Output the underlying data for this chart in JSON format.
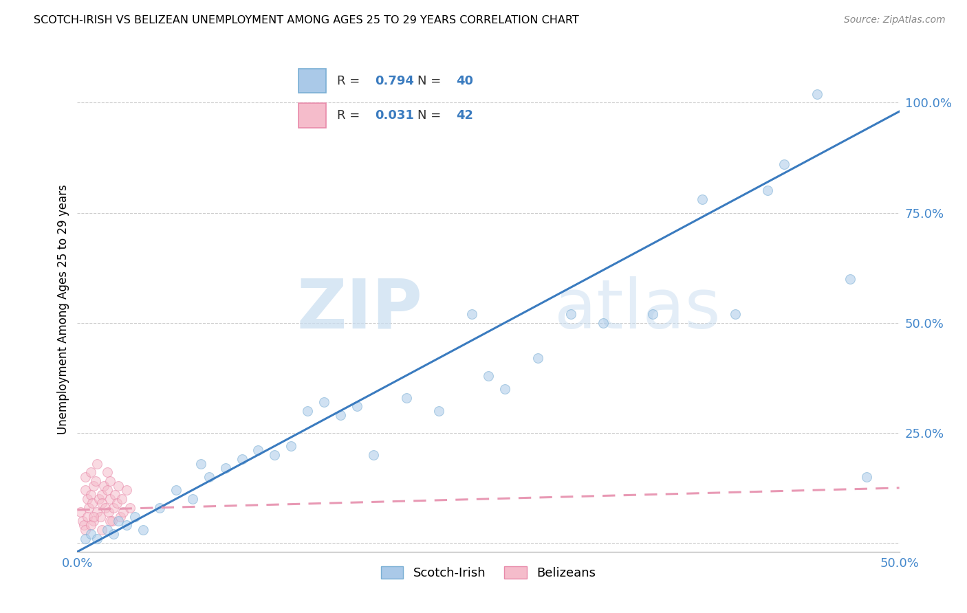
{
  "title": "SCOTCH-IRISH VS BELIZEAN UNEMPLOYMENT AMONG AGES 25 TO 29 YEARS CORRELATION CHART",
  "source": "Source: ZipAtlas.com",
  "ylabel_label": "Unemployment Among Ages 25 to 29 years",
  "xlim": [
    0.0,
    0.5
  ],
  "ylim": [
    -0.02,
    1.08
  ],
  "grid_color": "#cccccc",
  "background_color": "#ffffff",
  "scotch_irish_color": "#aac9e8",
  "scotch_irish_edge_color": "#7aafd4",
  "belizean_color": "#f5bccb",
  "belizean_edge_color": "#e88aaa",
  "scotch_irish_line_color": "#3a7bbf",
  "belizean_line_color": "#e899b4",
  "scotch_irish_R": "0.794",
  "scotch_irish_N": "40",
  "belizean_R": "0.031",
  "belizean_N": "42",
  "legend_label_scotch": "Scotch-Irish",
  "legend_label_belizean": "Belizeans",
  "watermark_zip": "ZIP",
  "watermark_atlas": "atlas",
  "scotch_irish_x": [
    0.005,
    0.008,
    0.012,
    0.018,
    0.022,
    0.025,
    0.03,
    0.035,
    0.04,
    0.05,
    0.06,
    0.07,
    0.075,
    0.08,
    0.09,
    0.1,
    0.11,
    0.12,
    0.13,
    0.14,
    0.15,
    0.16,
    0.17,
    0.18,
    0.2,
    0.22,
    0.24,
    0.25,
    0.26,
    0.28,
    0.3,
    0.32,
    0.35,
    0.38,
    0.4,
    0.42,
    0.43,
    0.45,
    0.47,
    0.48
  ],
  "scotch_irish_y": [
    0.01,
    0.02,
    0.01,
    0.03,
    0.02,
    0.05,
    0.04,
    0.06,
    0.03,
    0.08,
    0.12,
    0.1,
    0.18,
    0.15,
    0.17,
    0.19,
    0.21,
    0.2,
    0.22,
    0.3,
    0.32,
    0.29,
    0.31,
    0.2,
    0.33,
    0.3,
    0.52,
    0.38,
    0.35,
    0.42,
    0.52,
    0.5,
    0.52,
    0.78,
    0.52,
    0.8,
    0.86,
    1.02,
    0.6,
    0.15
  ],
  "belizean_x": [
    0.002,
    0.003,
    0.004,
    0.005,
    0.005,
    0.006,
    0.006,
    0.007,
    0.008,
    0.008,
    0.009,
    0.01,
    0.01,
    0.011,
    0.012,
    0.012,
    0.013,
    0.014,
    0.015,
    0.015,
    0.016,
    0.017,
    0.018,
    0.018,
    0.019,
    0.02,
    0.02,
    0.021,
    0.022,
    0.023,
    0.024,
    0.025,
    0.026,
    0.027,
    0.028,
    0.03,
    0.032,
    0.005,
    0.008,
    0.01,
    0.015,
    0.02
  ],
  "belizean_y": [
    0.07,
    0.05,
    0.04,
    0.12,
    0.15,
    0.06,
    0.1,
    0.08,
    0.11,
    0.16,
    0.09,
    0.13,
    0.05,
    0.14,
    0.07,
    0.18,
    0.1,
    0.06,
    0.11,
    0.09,
    0.13,
    0.08,
    0.12,
    0.16,
    0.07,
    0.1,
    0.14,
    0.05,
    0.08,
    0.11,
    0.09,
    0.13,
    0.06,
    0.1,
    0.07,
    0.12,
    0.08,
    0.03,
    0.04,
    0.06,
    0.03,
    0.05
  ],
  "marker_size": 100,
  "line_width": 2.2,
  "alpha_scatter": 0.55
}
